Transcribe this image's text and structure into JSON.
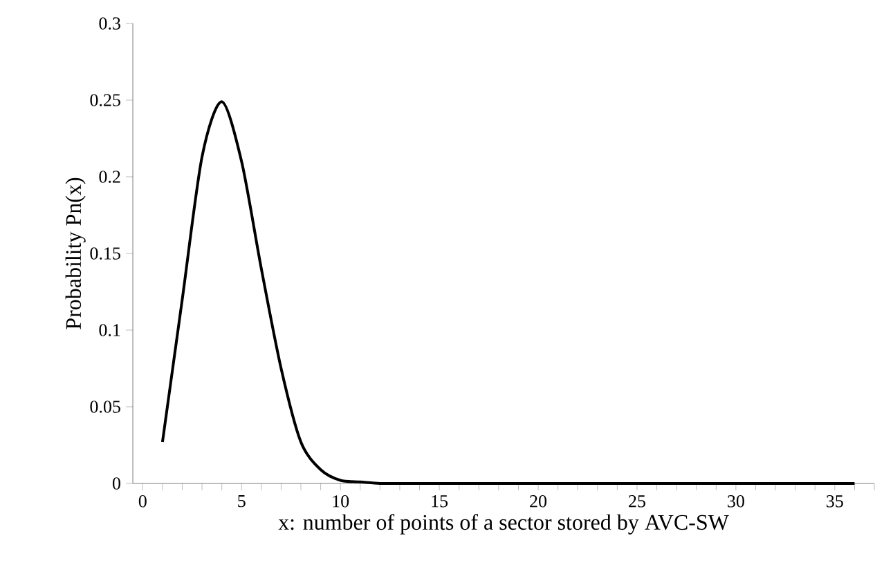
{
  "chart_data": {
    "type": "line",
    "xlabel": "x: number of points of a sector stored by AVC-SW",
    "ylabel": "Probability Pn(x)",
    "x": [
      1,
      2,
      3,
      4,
      5,
      6,
      7,
      8,
      9,
      10,
      11,
      12,
      13,
      14,
      15,
      16,
      17,
      18,
      19,
      20,
      21,
      22,
      23,
      24,
      25,
      26,
      27,
      28,
      29,
      30,
      31,
      32,
      33,
      34,
      35,
      36
    ],
    "series": [
      {
        "color": "#000000",
        "values": [
          0.027,
          0.12,
          0.213,
          0.249,
          0.21,
          0.14,
          0.075,
          0.027,
          0.009,
          0.002,
          0.001,
          0,
          0,
          0,
          0,
          0,
          0,
          0,
          0,
          0,
          0,
          0,
          0,
          0,
          0,
          0,
          0,
          0,
          0,
          0,
          0,
          0,
          0,
          0,
          0,
          0
        ]
      }
    ],
    "xlim": [
      -0.5,
      37
    ],
    "ylim": [
      0,
      0.3
    ],
    "xticks": [
      0,
      {
        "value": 1,
        "label": null
      },
      {
        "value": 2,
        "label": null
      },
      {
        "value": 3,
        "label": null
      },
      {
        "value": 4,
        "label": null
      },
      5,
      {
        "value": 6,
        "label": null
      },
      {
        "value": 7,
        "label": null
      },
      {
        "value": 8,
        "label": null
      },
      {
        "value": 9,
        "label": null
      },
      10,
      {
        "value": 11,
        "label": null
      },
      {
        "value": 12,
        "label": null
      },
      {
        "value": 13,
        "label": null
      },
      {
        "value": 14,
        "label": null
      },
      15,
      {
        "value": 16,
        "label": null
      },
      {
        "value": 17,
        "label": null
      },
      {
        "value": 18,
        "label": null
      },
      {
        "value": 19,
        "label": null
      },
      20,
      {
        "value": 21,
        "label": null
      },
      {
        "value": 22,
        "label": null
      },
      {
        "value": 23,
        "label": null
      },
      {
        "value": 24,
        "label": null
      },
      25,
      {
        "value": 26,
        "label": null
      },
      {
        "value": 27,
        "label": null
      },
      {
        "value": 28,
        "label": null
      },
      {
        "value": 29,
        "label": null
      },
      30,
      {
        "value": 31,
        "label": null
      },
      {
        "value": 32,
        "label": null
      },
      {
        "value": 33,
        "label": null
      },
      {
        "value": 34,
        "label": null
      },
      35,
      {
        "value": 36,
        "label": null
      },
      {
        "value": 37,
        "label": null
      }
    ],
    "yticks": [
      0,
      0.05,
      0.1,
      0.15,
      0.2,
      0.25,
      0.3
    ],
    "marker": "none",
    "line_style": "solid"
  }
}
